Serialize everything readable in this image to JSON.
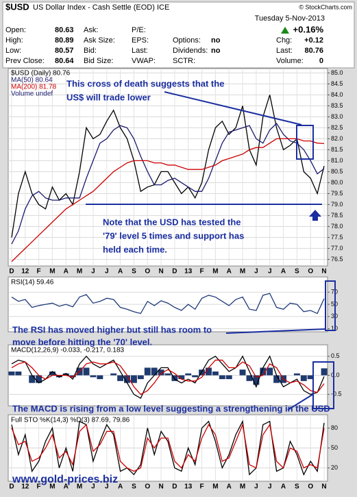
{
  "header": {
    "symbol": "$USD",
    "name": "US Dollar Index - Cash Settle (EOD) ICE",
    "site": "© StockCharts.com",
    "date": "Tuesday  5-Nov-2013",
    "change_pct": "+0.16%",
    "col1": [
      {
        "label": "Open:",
        "value": "80.63"
      },
      {
        "label": "High:",
        "value": "80.89"
      },
      {
        "label": "Low:",
        "value": "80.57"
      },
      {
        "label": "Prev Close:",
        "value": "80.64"
      }
    ],
    "col2": [
      "Ask:",
      "Ask Size:",
      "Bid:",
      "Bid Size:"
    ],
    "col3": [
      "P/E:",
      "EPS:",
      "Last:",
      "VWAP:"
    ],
    "col4": [
      {
        "label": "Options:",
        "value": "no"
      },
      {
        "label": "Dividends:",
        "value": "no"
      },
      {
        "label": "SCTR:"
      }
    ],
    "col5": [
      {
        "label": "Chg:",
        "value": "+0.12"
      },
      {
        "label": "Last:",
        "value": "80.76"
      },
      {
        "label": "Volume:",
        "value": "0"
      }
    ]
  },
  "chart_data": [
    {
      "type": "line",
      "legend_extra": "Volume undef",
      "categories": [
        "D",
        null,
        "12",
        null,
        "F",
        null,
        "M",
        null,
        "A",
        null,
        "M",
        null,
        "J",
        null,
        "J",
        null,
        "A",
        null,
        "S",
        null,
        "O",
        null,
        "N",
        null,
        "D",
        null,
        "13",
        null,
        "F",
        null,
        "M",
        null,
        "A",
        null,
        "M",
        null,
        "J",
        null,
        "J",
        null,
        "A",
        null,
        "S",
        null,
        "O",
        null,
        "N"
      ],
      "ylim": [
        76.2,
        85.2
      ],
      "yticks": [
        76.5,
        {
          "value": 77,
          "label": "77.0"
        },
        77.5,
        {
          "value": 78,
          "label": "78.0"
        },
        78.5,
        {
          "value": 79,
          "label": "79.0"
        },
        79.5,
        {
          "value": 80,
          "label": "80.0"
        },
        80.5,
        {
          "value": 81,
          "label": "81.0"
        },
        81.5,
        {
          "value": 82,
          "label": "82.0"
        },
        82.5,
        {
          "value": 83,
          "label": "83.0"
        },
        83.5,
        {
          "value": 84,
          "label": "84.0"
        },
        84.5,
        {
          "value": 85,
          "label": "85.0"
        }
      ],
      "grid": true,
      "series": [
        {
          "name": "$USD (Daily) 80.76",
          "color": "#000000",
          "values": [
            77.5,
            79.5,
            80.5,
            79.5,
            79.0,
            78.8,
            79.8,
            79.2,
            79.5,
            79.0,
            80.5,
            82.5,
            82.0,
            82.2,
            82.8,
            83.3,
            82.5,
            82.0,
            81.0,
            79.6,
            79.8,
            79.9,
            80.5,
            80.5,
            80.0,
            79.5,
            79.8,
            79.3,
            80.0,
            81.5,
            82.5,
            82.8,
            82.2,
            82.5,
            83.5,
            81.5,
            80.8,
            83.0,
            84.0,
            82.5,
            81.5,
            81.7,
            82.0,
            80.5,
            80.2,
            79.5,
            80.76
          ]
        },
        {
          "name": "MA(50) 80.64",
          "color": "#1a1a6e",
          "values": [
            77.2,
            77.8,
            78.8,
            79.4,
            79.6,
            79.3,
            79.2,
            79.2,
            79.3,
            79.3,
            79.3,
            80.2,
            81.0,
            81.8,
            82.0,
            82.4,
            82.6,
            82.5,
            82.0,
            81.2,
            80.5,
            79.9,
            79.9,
            80.1,
            80.2,
            80.0,
            79.8,
            79.6,
            79.6,
            80.2,
            81.0,
            81.8,
            82.3,
            82.4,
            82.5,
            82.6,
            82.0,
            81.8,
            82.4,
            82.7,
            82.2,
            81.9,
            81.8,
            81.5,
            81.0,
            80.4,
            80.64
          ]
        },
        {
          "name": "MA(200) 81.78",
          "color": "#cc0000",
          "values": [
            76.4,
            76.7,
            77.0,
            77.3,
            77.6,
            77.9,
            78.2,
            78.5,
            78.8,
            79.0,
            79.2,
            79.4,
            79.6,
            79.9,
            80.2,
            80.5,
            80.7,
            80.9,
            81.0,
            81.0,
            81.0,
            80.9,
            80.9,
            80.8,
            80.8,
            80.7,
            80.6,
            80.6,
            80.6,
            80.7,
            80.8,
            81.0,
            81.1,
            81.2,
            81.3,
            81.5,
            81.6,
            81.6,
            81.8,
            82.0,
            82.0,
            82.0,
            82.0,
            81.9,
            81.9,
            81.8,
            81.78
          ]
        }
      ],
      "annotations": [
        "This cross of death suggests that the",
        "US$ will trade lower",
        "Note that the USD has tested the",
        "'79' level 5 times and support has",
        "held each time."
      ]
    },
    {
      "type": "line",
      "title": "RSI(14) 59.46",
      "ylim": [
        5,
        95
      ],
      "yticks": [
        10,
        30,
        50,
        70
      ],
      "grid": true,
      "series": [
        {
          "color": "#1f3a7a",
          "values": [
            62,
            55,
            58,
            45,
            48,
            50,
            52,
            47,
            50,
            46,
            62,
            66,
            52,
            55,
            60,
            58,
            45,
            42,
            38,
            35,
            55,
            48,
            56,
            52,
            45,
            40,
            50,
            42,
            60,
            65,
            62,
            55,
            48,
            58,
            62,
            42,
            40,
            65,
            68,
            45,
            42,
            52,
            50,
            38,
            40,
            35,
            59.46
          ]
        }
      ],
      "annotations": [
        "The RSI has moved higher but still has room to",
        "move before hitting the '70' level."
      ]
    },
    {
      "type": "line",
      "title": "MACD(12,26,9) -0.033, -0.217, 0.183",
      "ylim": [
        -0.8,
        0.8
      ],
      "yticks": [
        -0.5,
        {
          "value": 0,
          "label": "0.0"
        },
        0.5
      ],
      "grid": true,
      "series": [
        {
          "kind": "bar",
          "color": "#1f3a6e",
          "values": [
            0.1,
            0.1,
            0.0,
            -0.2,
            -0.2,
            0.0,
            0.1,
            -0.05,
            0.05,
            -0.05,
            0.2,
            0.2,
            -0.05,
            -0.1,
            0.0,
            0.05,
            -0.15,
            -0.2,
            -0.2,
            -0.1,
            0.2,
            0.2,
            0.15,
            0.05,
            -0.15,
            -0.1,
            0.05,
            -0.05,
            0.15,
            0.2,
            0.1,
            -0.1,
            -0.1,
            0.0,
            0.15,
            -0.15,
            -0.25,
            0.2,
            0.2,
            -0.2,
            -0.2,
            0.0,
            0.05,
            -0.15,
            -0.1,
            0.0,
            0.183
          ]
        },
        {
          "color": "#000000",
          "values": [
            0.3,
            0.4,
            0.35,
            0.0,
            -0.2,
            -0.1,
            0.1,
            -0.05,
            0.05,
            -0.1,
            0.3,
            0.5,
            0.3,
            0.2,
            0.3,
            0.4,
            0.1,
            -0.2,
            -0.5,
            -0.6,
            -0.2,
            0.0,
            0.2,
            0.2,
            -0.1,
            -0.2,
            -0.1,
            -0.2,
            0.1,
            0.4,
            0.5,
            0.3,
            0.1,
            0.2,
            0.5,
            0.1,
            -0.3,
            0.2,
            0.5,
            0.0,
            -0.3,
            -0.2,
            -0.1,
            -0.4,
            -0.5,
            -0.45,
            -0.033
          ]
        },
        {
          "color": "#cc0000",
          "values": [
            0.2,
            0.3,
            0.35,
            0.2,
            0.0,
            -0.1,
            0.0,
            0.0,
            0.0,
            -0.05,
            0.1,
            0.3,
            0.35,
            0.3,
            0.3,
            0.35,
            0.25,
            0.0,
            -0.3,
            -0.5,
            -0.4,
            -0.2,
            0.05,
            0.15,
            0.05,
            -0.1,
            -0.15,
            -0.15,
            -0.05,
            0.2,
            0.4,
            0.4,
            0.2,
            0.2,
            0.35,
            0.25,
            -0.05,
            0.0,
            0.3,
            0.2,
            -0.1,
            -0.2,
            -0.15,
            -0.25,
            -0.4,
            -0.45,
            -0.217
          ]
        }
      ],
      "annotations": [
        "The MACD is rising from a low level suggesting a strengthening in the USD"
      ]
    },
    {
      "type": "line",
      "title": "Full STO %K(14,3) %D(3) 87.69, 79.86",
      "categories": [
        "D",
        null,
        "12",
        null,
        "F",
        null,
        "M",
        null,
        "A",
        null,
        "M",
        null,
        "J",
        null,
        "J",
        null,
        "A",
        null,
        "S",
        null,
        "O",
        null,
        "N",
        null,
        "D",
        null,
        "13",
        null,
        "F",
        null,
        "M",
        null,
        "A",
        null,
        "M",
        null,
        "J",
        null,
        "J",
        null,
        "A",
        null,
        "S",
        null,
        "O",
        null,
        "N"
      ],
      "ylim": [
        0,
        100
      ],
      "yticks": [
        20,
        50,
        80
      ],
      "grid": true,
      "series": [
        {
          "color": "#000000",
          "values": [
            85,
            40,
            70,
            15,
            30,
            60,
            80,
            20,
            50,
            15,
            90,
            85,
            30,
            60,
            85,
            70,
            15,
            20,
            10,
            25,
            80,
            40,
            75,
            60,
            20,
            15,
            50,
            25,
            80,
            90,
            60,
            20,
            40,
            70,
            90,
            10,
            20,
            85,
            90,
            15,
            20,
            60,
            40,
            10,
            30,
            15,
            87.69
          ]
        },
        {
          "color": "#cc0000",
          "values": [
            80,
            55,
            60,
            30,
            35,
            50,
            70,
            35,
            45,
            25,
            75,
            85,
            45,
            55,
            75,
            75,
            30,
            20,
            15,
            20,
            65,
            50,
            65,
            65,
            30,
            20,
            40,
            30,
            65,
            85,
            70,
            30,
            35,
            60,
            85,
            25,
            20,
            70,
            85,
            30,
            20,
            50,
            45,
            20,
            25,
            20,
            79.86
          ]
        }
      ],
      "annotations": []
    }
  ],
  "footer": "www.gold-prices.biz"
}
